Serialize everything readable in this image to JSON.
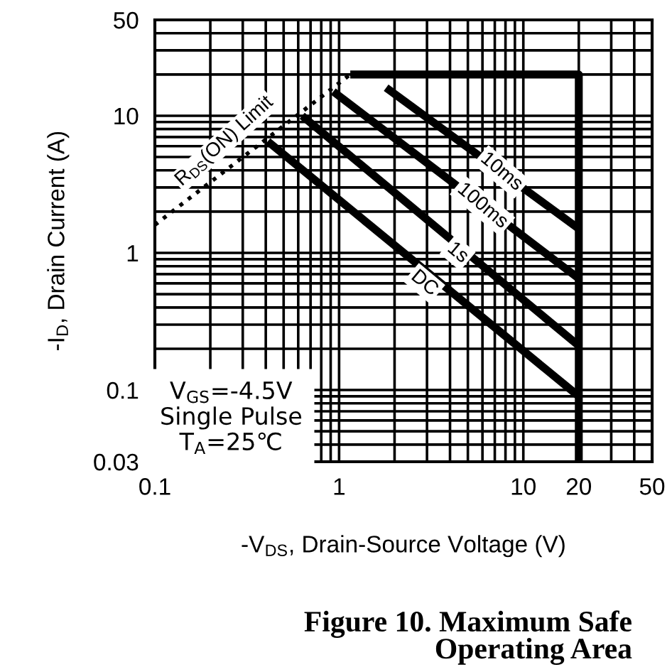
{
  "chart_data": {
    "type": "line",
    "xlabel": "-V$_{DS}$, Drain-Source Voltage (V)",
    "ylabel": "-I$_{D}$, Drain Current (A)",
    "log": "xy",
    "xlim": [
      0.1,
      50
    ],
    "ylim": [
      0.03,
      50
    ],
    "xticks": [
      0.1,
      1,
      10,
      20,
      50
    ],
    "yticks": [
      0.03,
      0.1,
      1,
      10,
      50
    ],
    "grid": true,
    "legend": false,
    "marker": "none",
    "series": [
      {
        "color": "#000000",
        "x": [
          0.1,
          1.15
        ],
        "values": [
          1.6,
          20
        ],
        "line_style": "dotted"
      },
      {
        "color": "#000000",
        "x": [
          1.15,
          20,
          20
        ],
        "values": [
          20,
          20,
          0.03
        ],
        "line_style": "solid"
      },
      {
        "color": "#000000",
        "x": [
          1.8,
          20
        ],
        "values": [
          16,
          1.5
        ],
        "line_style": "solid"
      },
      {
        "color": "#000000",
        "x": [
          0.93,
          20
        ],
        "values": [
          15,
          0.65
        ],
        "line_style": "solid"
      },
      {
        "color": "#000000",
        "x": [
          0.63,
          20
        ],
        "values": [
          10,
          0.21
        ],
        "line_style": "solid"
      },
      {
        "color": "#000000",
        "x": [
          0.41,
          20
        ],
        "values": [
          6.5,
          0.09
        ],
        "line_style": "solid"
      }
    ],
    "annotations": [
      "R$_{DS}$(ON) Limit",
      {
        "text": "10ms",
        "x": 7.6,
        "y": 3.9
      },
      {
        "text": "100ms",
        "x": 6,
        "y": 2.2
      },
      {
        "text": "1s",
        "x": 4.4,
        "y": 1.0
      },
      {
        "text": "DC",
        "x": 2.9,
        "y": 0.6
      },
      "V$_{GS}$=-4.5V\nSingle Pulse\nT$_{A}$=25℃",
      "Figure 10. Maximum Safe\nOperating Area"
    ]
  }
}
